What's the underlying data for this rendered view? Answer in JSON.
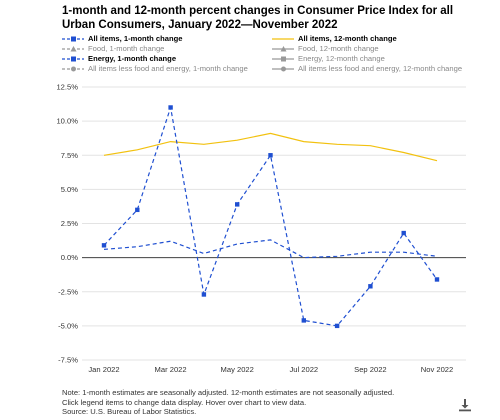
{
  "header": {
    "title": "1-month and 12-month percent changes in Consumer Price Index for all Urban Consumers, January 2022—November 2022"
  },
  "legend": [
    {
      "label": "All items, 1-month change",
      "style": "dashed-square",
      "color": "#1f4fd1",
      "state": "active"
    },
    {
      "label": "All items, 12-month change",
      "style": "solid",
      "color": "#f2c10f",
      "state": "active"
    },
    {
      "label": "Food, 1-month change",
      "style": "dashed-triangle",
      "color": "#999999",
      "state": "hidden"
    },
    {
      "label": "Food, 12-month change",
      "style": "solid-triangle",
      "color": "#999999",
      "state": "hidden"
    },
    {
      "label": "Energy, 1-month change",
      "style": "dashed-square",
      "color": "#1f4fd1",
      "state": "active"
    },
    {
      "label": "Energy, 12-month change",
      "style": "solid-square",
      "color": "#999999",
      "state": "hidden"
    },
    {
      "label": "All items less food and energy, 1-month change",
      "style": "dashed-circle",
      "color": "#999999",
      "state": "hidden"
    },
    {
      "label": "All items less food and energy, 12-month change",
      "style": "solid-circle",
      "color": "#999999",
      "state": "hidden"
    }
  ],
  "chart_data": {
    "type": "line",
    "x": [
      "Jan 2022",
      "Feb 2022",
      "Mar 2022",
      "Apr 2022",
      "May 2022",
      "Jun 2022",
      "Jul 2022",
      "Aug 2022",
      "Sep 2022",
      "Oct 2022",
      "Nov 2022"
    ],
    "x_tick_labels": [
      "Jan 2022",
      "Mar 2022",
      "May 2022",
      "Jul 2022",
      "Sep 2022",
      "Nov 2022"
    ],
    "y_tick_labels": [
      "12.5%",
      "10.0%",
      "7.5%",
      "5.0%",
      "2.5%",
      "0.0%",
      "-2.5%",
      "-5.0%",
      "-7.5%"
    ],
    "ylim": [
      -7.5,
      12.5
    ],
    "grid": "horizontal",
    "series": [
      {
        "name": "All items, 1-month change",
        "style": "dashed",
        "color": "#1f4fd1",
        "values": [
          0.6,
          0.8,
          1.2,
          0.3,
          1.0,
          1.3,
          0.0,
          0.1,
          0.4,
          0.4,
          0.1
        ]
      },
      {
        "name": "All items, 12-month change",
        "style": "solid",
        "color": "#f2c10f",
        "values": [
          7.5,
          7.9,
          8.5,
          8.3,
          8.6,
          9.1,
          8.5,
          8.3,
          8.2,
          7.7,
          7.1
        ]
      },
      {
        "name": "Energy, 1-month change",
        "style": "dashed-markers",
        "color": "#1f4fd1",
        "values": [
          0.9,
          3.5,
          11.0,
          -2.7,
          3.9,
          7.5,
          -4.6,
          -5.0,
          -2.1,
          1.8,
          -1.6
        ]
      }
    ]
  },
  "footnote": {
    "line1": "Note: 1-month estimates are seasonally adjusted. 12-month estimates are not seasonally adjusted.",
    "line2": "Click legend items to change data display. Hover over chart to view data.",
    "line3": "Source: U.S. Bureau of Labor Statistics."
  },
  "icons": {
    "download": "download-icon"
  }
}
